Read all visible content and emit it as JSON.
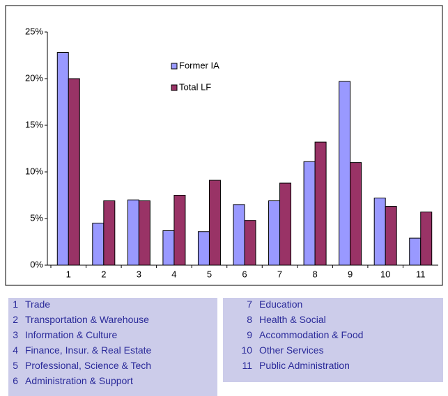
{
  "chart_data": {
    "type": "bar",
    "categories": [
      "1",
      "2",
      "3",
      "4",
      "5",
      "6",
      "7",
      "8",
      "9",
      "10",
      "11"
    ],
    "series": [
      {
        "name": "Former IA",
        "color": "#9999ff",
        "values": [
          22.8,
          4.5,
          7.0,
          3.7,
          3.6,
          6.5,
          6.9,
          11.1,
          19.7,
          7.2,
          2.9
        ]
      },
      {
        "name": "Total LF",
        "color": "#993366",
        "values": [
          20.0,
          6.9,
          6.9,
          7.5,
          9.1,
          4.8,
          8.8,
          13.2,
          11.0,
          6.3,
          5.7
        ]
      }
    ],
    "ylim": [
      0,
      25
    ],
    "yticks": [
      {
        "value": 0,
        "label": "0%"
      },
      {
        "value": 5,
        "label": "5%"
      },
      {
        "value": 10,
        "label": "10%"
      },
      {
        "value": 15,
        "label": "15%"
      },
      {
        "value": 20,
        "label": "20%"
      },
      {
        "value": 25,
        "label": "25%"
      }
    ],
    "grid": false,
    "legend": "top-center"
  },
  "key": [
    {
      "number": "1",
      "name": "Trade"
    },
    {
      "number": "2",
      "name": "Transportation & Warehouse"
    },
    {
      "number": "3",
      "name": "Information & Culture"
    },
    {
      "number": "4",
      "name": "Finance, Insur. & Real Estate"
    },
    {
      "number": "5",
      "name": "Professional, Science & Tech"
    },
    {
      "number": "6",
      "name": "Administration & Support"
    },
    {
      "number": "7",
      "name": "Education"
    },
    {
      "number": "8",
      "name": "Health & Social"
    },
    {
      "number": "9",
      "name": "Accommodation & Food"
    },
    {
      "number": "10",
      "name": "Other Services"
    },
    {
      "number": "11",
      "name": "Public Administration"
    }
  ]
}
